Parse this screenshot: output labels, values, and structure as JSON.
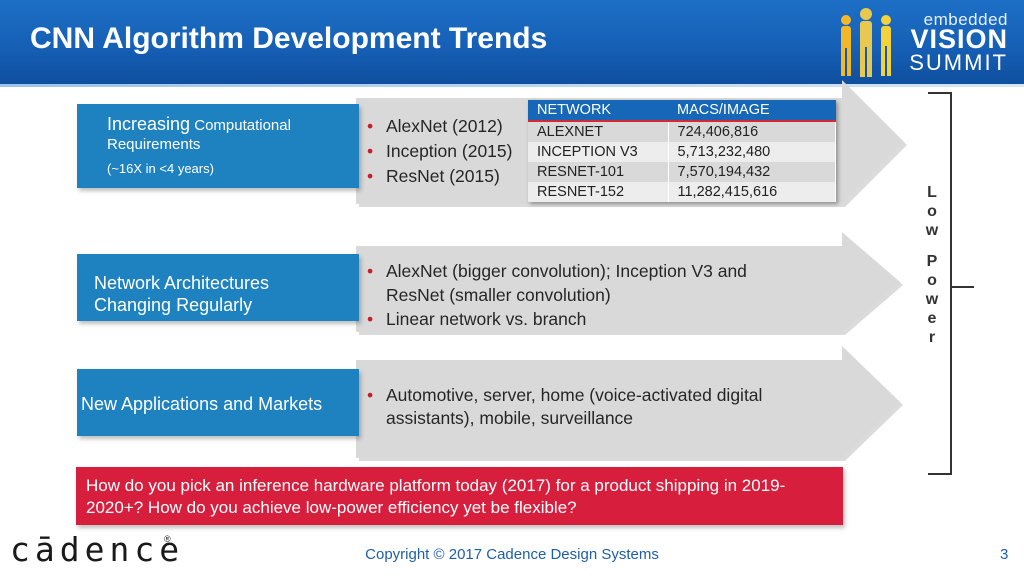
{
  "header": {
    "title": "CNN Algorithm Development Trends",
    "logo_line1": "embedded",
    "logo_line2": "VISION",
    "logo_line3": "SUMMIT"
  },
  "rows": [
    {
      "box_title": "Increasing",
      "box_title_rest": " Computational",
      "box_line2": "Requirements",
      "box_line3": "(~16X in <4 years)",
      "bullets": [
        "AlexNet (2012)",
        "Inception (2015)",
        "ResNet (2015)"
      ]
    },
    {
      "box_line1": "Network Architectures",
      "box_line2": "Changing Regularly",
      "bullets": [
        "AlexNet (bigger convolution); Inception V3 and ResNet (smaller convolution)",
        "Linear network vs. branch"
      ]
    },
    {
      "box_line1": "New Applications and Markets",
      "bullets": [
        "Automotive, server, home (voice-activated digital assistants), mobile, surveillance"
      ]
    }
  ],
  "table": {
    "headers": [
      "NETWORK",
      "MACS/IMAGE"
    ],
    "rows": [
      [
        "ALEXNET",
        "724,406,816"
      ],
      [
        "INCEPTION V3",
        "5,713,232,480"
      ],
      [
        "RESNET-101",
        "7,570,194,432"
      ],
      [
        "RESNET-152",
        "11,282,415,616"
      ]
    ]
  },
  "question": "How do you pick an inference hardware platform today (2017) for a product shipping in 2019-2020+?  How do you achieve low-power efficiency yet be flexible?",
  "side_label": {
    "word1": [
      "L",
      "o",
      "w"
    ],
    "word2": [
      "P",
      "o",
      "w",
      "e",
      "r"
    ]
  },
  "footer": {
    "copyright": "Copyright © 2017 Cadence Design Systems",
    "page": "3",
    "brand": "cādence",
    "registered": "®"
  },
  "colors": {
    "header_blue": "#1660b6",
    "box_blue": "#1f82c0",
    "arrow_gray": "#d9d9d9",
    "bullet_red": "#c2202a",
    "question_red": "#d71f3d",
    "table_header_blue": "#1667b8"
  }
}
